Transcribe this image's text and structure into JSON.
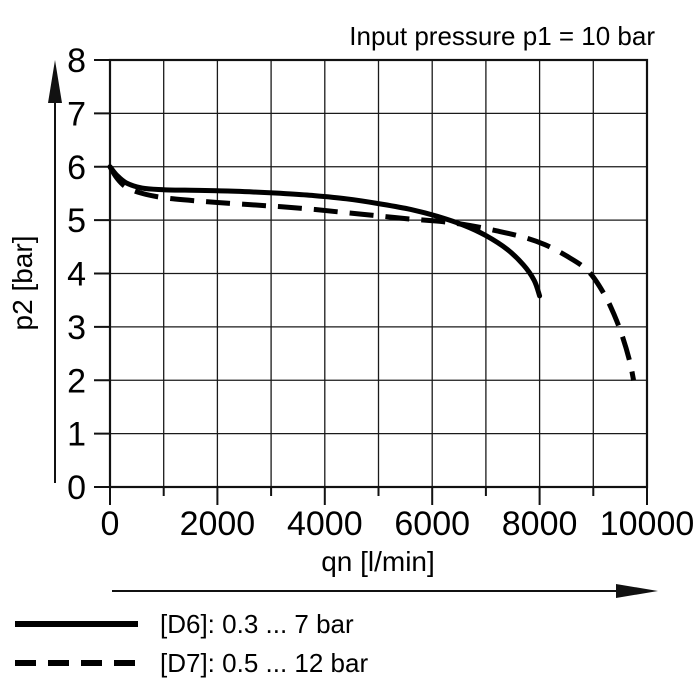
{
  "chart": {
    "title": "Input pressure p1 = 10 bar",
    "xlabel": "qn [l/min]",
    "ylabel": "p2 [bar]"
  },
  "legend": {
    "items": [
      {
        "id": "D6",
        "label": "[D6]: 0.3 ... 7 bar",
        "style": "solid"
      },
      {
        "id": "D7",
        "label": "[D7]: 0.5 ... 12 bar",
        "style": "dashed"
      }
    ]
  },
  "colors": {
    "line": "#000000",
    "grid": "#1a1a1a",
    "frame": "#111111",
    "background": "#ffffff"
  },
  "chart_data": {
    "type": "line",
    "title": "Input pressure p1 = 10 bar",
    "xlabel": "qn [l/min]",
    "ylabel": "p2 [bar]",
    "xlim": [
      0,
      10000
    ],
    "ylim": [
      0,
      8
    ],
    "x_major_ticks": [
      0,
      2000,
      4000,
      6000,
      8000,
      10000
    ],
    "x_minor_tick_step": 1000,
    "y_ticks": [
      0,
      1,
      2,
      3,
      4,
      5,
      6,
      7,
      8
    ],
    "grid": "on (every 1000 l/min, every 1 bar)",
    "legend_position": "below-left",
    "series": [
      {
        "name": "[D6]: 0.3 ... 7 bar",
        "line_style": "solid",
        "color": "#000000",
        "points": [
          [
            0,
            6.0
          ],
          [
            120,
            5.85
          ],
          [
            300,
            5.7
          ],
          [
            600,
            5.6
          ],
          [
            1000,
            5.57
          ],
          [
            1500,
            5.56
          ],
          [
            2000,
            5.55
          ],
          [
            2600,
            5.53
          ],
          [
            3200,
            5.5
          ],
          [
            3800,
            5.46
          ],
          [
            4400,
            5.4
          ],
          [
            5000,
            5.31
          ],
          [
            5600,
            5.2
          ],
          [
            6100,
            5.07
          ],
          [
            6600,
            4.9
          ],
          [
            7000,
            4.71
          ],
          [
            7400,
            4.45
          ],
          [
            7700,
            4.16
          ],
          [
            7900,
            3.87
          ],
          [
            8000,
            3.58
          ]
        ]
      },
      {
        "name": "[D7]: 0.5 ... 12 bar",
        "line_style": "dashed",
        "color": "#000000",
        "points": [
          [
            0,
            6.0
          ],
          [
            120,
            5.8
          ],
          [
            300,
            5.62
          ],
          [
            600,
            5.5
          ],
          [
            1000,
            5.42
          ],
          [
            1500,
            5.37
          ],
          [
            2000,
            5.33
          ],
          [
            2600,
            5.29
          ],
          [
            3200,
            5.25
          ],
          [
            3800,
            5.2
          ],
          [
            4400,
            5.14
          ],
          [
            5000,
            5.08
          ],
          [
            5600,
            5.02
          ],
          [
            6200,
            4.97
          ],
          [
            6700,
            4.9
          ],
          [
            7200,
            4.8
          ],
          [
            7700,
            4.68
          ],
          [
            8100,
            4.54
          ],
          [
            8500,
            4.33
          ],
          [
            8900,
            4.05
          ],
          [
            9200,
            3.62
          ],
          [
            9400,
            3.2
          ],
          [
            9550,
            2.8
          ],
          [
            9680,
            2.35
          ],
          [
            9750,
            2.0
          ]
        ]
      }
    ]
  }
}
